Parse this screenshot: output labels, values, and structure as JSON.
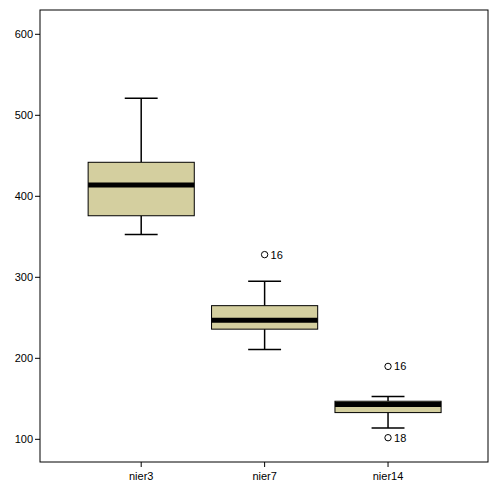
{
  "chart_data": {
    "type": "box",
    "categories": [
      "nier3",
      "nier7",
      "nier14"
    ],
    "boxes": [
      {
        "min": 353,
        "q1": 376,
        "median": 414,
        "q3": 442,
        "max": 521,
        "outliers": []
      },
      {
        "min": 211,
        "q1": 236,
        "median": 247,
        "q3": 265,
        "max": 295,
        "outliers": [
          {
            "value": 328,
            "label": "16"
          }
        ]
      },
      {
        "min": 114,
        "q1": 133,
        "median": 143,
        "q3": 147,
        "max": 153,
        "outliers": [
          {
            "value": 190,
            "label": "16"
          },
          {
            "value": 102,
            "label": "18"
          }
        ]
      }
    ],
    "color": "#d4cf9f",
    "ylim": [
      72,
      630
    ],
    "yticks": [
      100,
      200,
      300,
      400,
      500,
      600
    ],
    "grid": false
  }
}
